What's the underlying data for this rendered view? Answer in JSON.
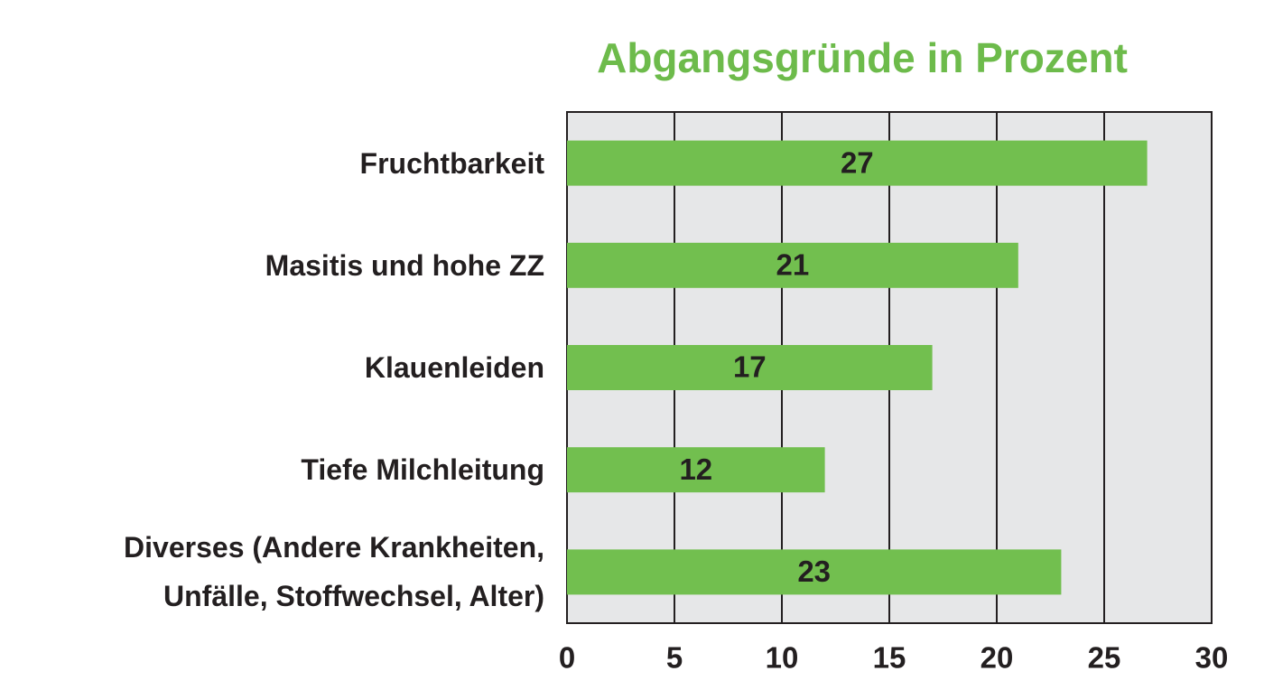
{
  "chart_data": {
    "type": "hbar",
    "title": "Abgangsgründe in Prozent",
    "categories": [
      "Fruchtbarkeit",
      "Masitis und hohe ZZ",
      "Klauenleiden",
      "Tiefe Milchleitung",
      "Diverses (Andere Krankheiten, Unfälle, Stoffwechsel, Alter)"
    ],
    "values": [
      27,
      21,
      17,
      12,
      23
    ],
    "color": "#72bf4f",
    "xlim": [
      0,
      30
    ],
    "xticks": [
      0,
      5,
      10,
      15,
      20,
      25,
      30
    ],
    "grid": true
  }
}
